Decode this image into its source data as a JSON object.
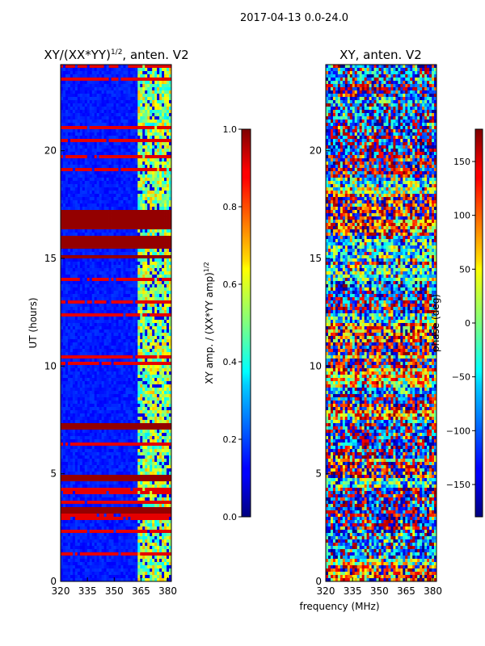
{
  "suptitle": "2017-04-13 0.0-24.0",
  "shared_xlabel": "frequency (MHz)",
  "chart_data": [
    {
      "type": "heatmap",
      "title": "XY/(XX*YY)",
      "title_superscript": "1/2",
      "title_suffix": ", anten. V2",
      "ylabel": "UT (hours)",
      "xlim": [
        320,
        382
      ],
      "ylim": [
        0,
        24
      ],
      "xticks": [
        320,
        335,
        350,
        365,
        380
      ],
      "yticks": [
        0,
        5,
        10,
        15,
        20
      ],
      "colorbar": {
        "label": "XY amp. / (XX*YY amp)",
        "label_superscript": "1/2",
        "range": [
          0.0,
          1.0
        ],
        "ticks": [
          "0.0",
          "0.2",
          "0.4",
          "0.6",
          "0.8",
          "1.0"
        ],
        "tick_values": [
          0.0,
          0.2,
          0.4,
          0.6,
          0.8,
          1.0
        ],
        "colormap": "jet"
      },
      "saturated_time_bands": [
        [
          15.0,
          15.2
        ],
        [
          15.5,
          16.0
        ],
        [
          16.3,
          17.3
        ],
        [
          7.1,
          7.3
        ],
        [
          4.6,
          4.9
        ],
        [
          3.2,
          3.5
        ]
      ],
      "active_frequency_band": [
        363,
        382
      ]
    },
    {
      "type": "heatmap",
      "title": "XY, anten. V2",
      "xlim": [
        320,
        382
      ],
      "ylim": [
        0,
        24
      ],
      "xticks": [
        320,
        335,
        350,
        365,
        380
      ],
      "yticks": [
        0,
        5,
        10,
        15,
        20
      ],
      "colorbar": {
        "label": "phase (deg)",
        "range": [
          -180,
          180
        ],
        "ticks": [
          "−150",
          "−100",
          "−50",
          "0",
          "50",
          "100",
          "150"
        ],
        "tick_values": [
          -150,
          -100,
          -50,
          0,
          50,
          100,
          150
        ],
        "colormap": "jet"
      }
    }
  ]
}
